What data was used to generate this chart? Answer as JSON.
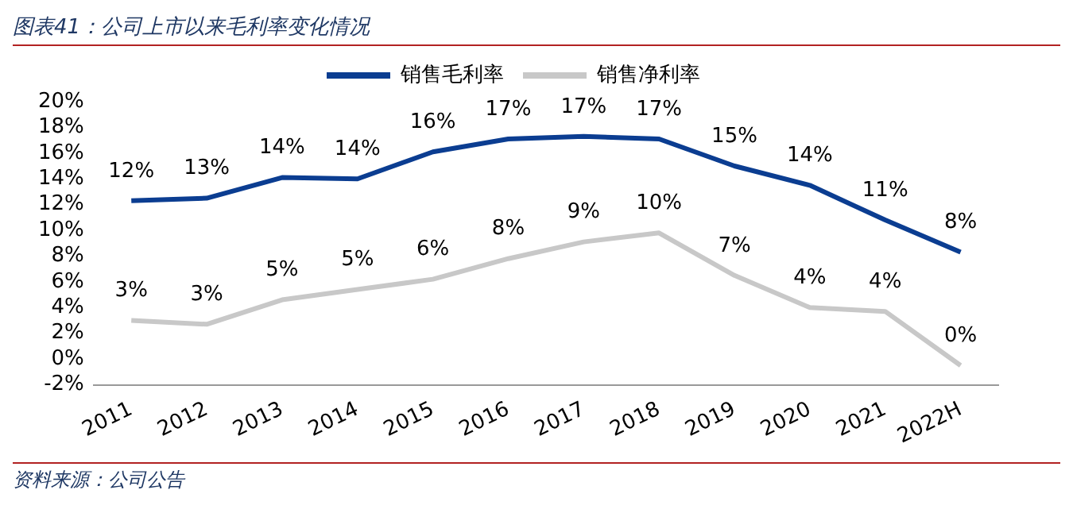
{
  "chart_data": {
    "type": "line",
    "title": "图表41：公司上市以来毛利率变化情况",
    "annotations": [
      "资料来源：公司公告"
    ],
    "categories": [
      "2011",
      "2012",
      "2013",
      "2014",
      "2015",
      "2016",
      "2017",
      "2018",
      "2019",
      "2020",
      "2021",
      "2022H"
    ],
    "series": [
      {
        "name": "销售毛利率",
        "color": "#0b3d91",
        "values": [
          12.3,
          12.5,
          14.1,
          14.0,
          16.1,
          17.1,
          17.3,
          17.1,
          15.0,
          13.5,
          10.8,
          8.3
        ],
        "value_labels": [
          "12%",
          "13%",
          "14%",
          "14%",
          "16%",
          "17%",
          "17%",
          "17%",
          "15%",
          "14%",
          "11%",
          "8%"
        ]
      },
      {
        "name": "销售净利率",
        "color": "#c8c8c8",
        "values": [
          3.0,
          2.7,
          4.6,
          5.4,
          6.2,
          7.8,
          9.1,
          9.8,
          6.5,
          4.0,
          3.7,
          -0.5
        ],
        "value_labels": [
          "3%",
          "3%",
          "5%",
          "5%",
          "6%",
          "8%",
          "9%",
          "10%",
          "7%",
          "4%",
          "4%",
          "0%"
        ]
      }
    ],
    "ylim": [
      -2,
      20
    ],
    "yticks": [
      {
        "value": -2,
        "label": "-2%"
      },
      {
        "value": 0,
        "label": "0%"
      },
      {
        "value": 2,
        "label": "2%"
      },
      {
        "value": 4,
        "label": "4%"
      },
      {
        "value": 6,
        "label": "6%"
      },
      {
        "value": 8,
        "label": "8%"
      },
      {
        "value": 10,
        "label": "10%"
      },
      {
        "value": 12,
        "label": "12%"
      },
      {
        "value": 14,
        "label": "14%"
      },
      {
        "value": 16,
        "label": "16%"
      },
      {
        "value": 18,
        "label": "18%"
      },
      {
        "value": 20,
        "label": "20%"
      }
    ],
    "grid": false,
    "legend": "top",
    "marker": "none",
    "line_style": "solid"
  }
}
